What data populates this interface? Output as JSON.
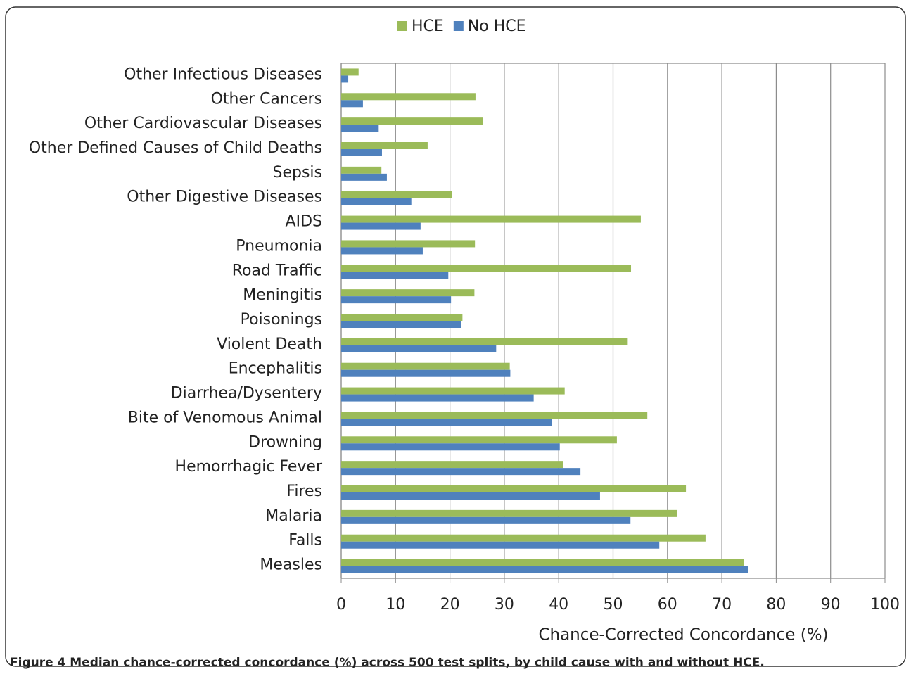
{
  "chart_data": {
    "type": "hbar",
    "caption": "Figure 4 Median chance-corrected concordance (%) across 500 test splits, by child cause with and without HCE.",
    "xlabel": "Chance-Corrected Concordance (%)",
    "categories": [
      "Other Infectious Diseases",
      "Other Cancers",
      "Other Cardiovascular Diseases",
      "Other Defined Causes of Child Deaths",
      "Sepsis",
      "Other Digestive Diseases",
      "AIDS",
      "Pneumonia",
      "Road Traffic",
      "Meningitis",
      "Poisonings",
      "Violent Death",
      "Encephalitis",
      "Diarrhea/Dysentery",
      "Bite of Venomous Animal",
      "Drowning",
      "Hemorrhagic Fever",
      "Fires",
      "Malaria",
      "Falls",
      "Measles"
    ],
    "series": [
      {
        "name": "HCE",
        "color": "#9bbb59",
        "values": [
          3.2,
          24.7,
          26.1,
          15.9,
          7.4,
          20.4,
          55.1,
          24.6,
          53.3,
          24.5,
          22.3,
          52.7,
          31.0,
          41.1,
          56.3,
          50.7,
          40.8,
          63.4,
          61.8,
          67.0,
          74.0
        ]
      },
      {
        "name": "No HCE",
        "color": "#4f81bd",
        "values": [
          1.3,
          4.0,
          6.9,
          7.5,
          8.4,
          12.9,
          14.6,
          15.0,
          19.7,
          20.2,
          22.0,
          28.5,
          31.1,
          35.4,
          38.8,
          40.2,
          44.0,
          47.6,
          53.2,
          58.5,
          74.8
        ]
      }
    ],
    "xlim": [
      0,
      100
    ],
    "xticks": [
      0,
      10,
      20,
      30,
      40,
      50,
      60,
      70,
      80,
      90,
      100
    ],
    "grid": true,
    "legend": "top"
  }
}
